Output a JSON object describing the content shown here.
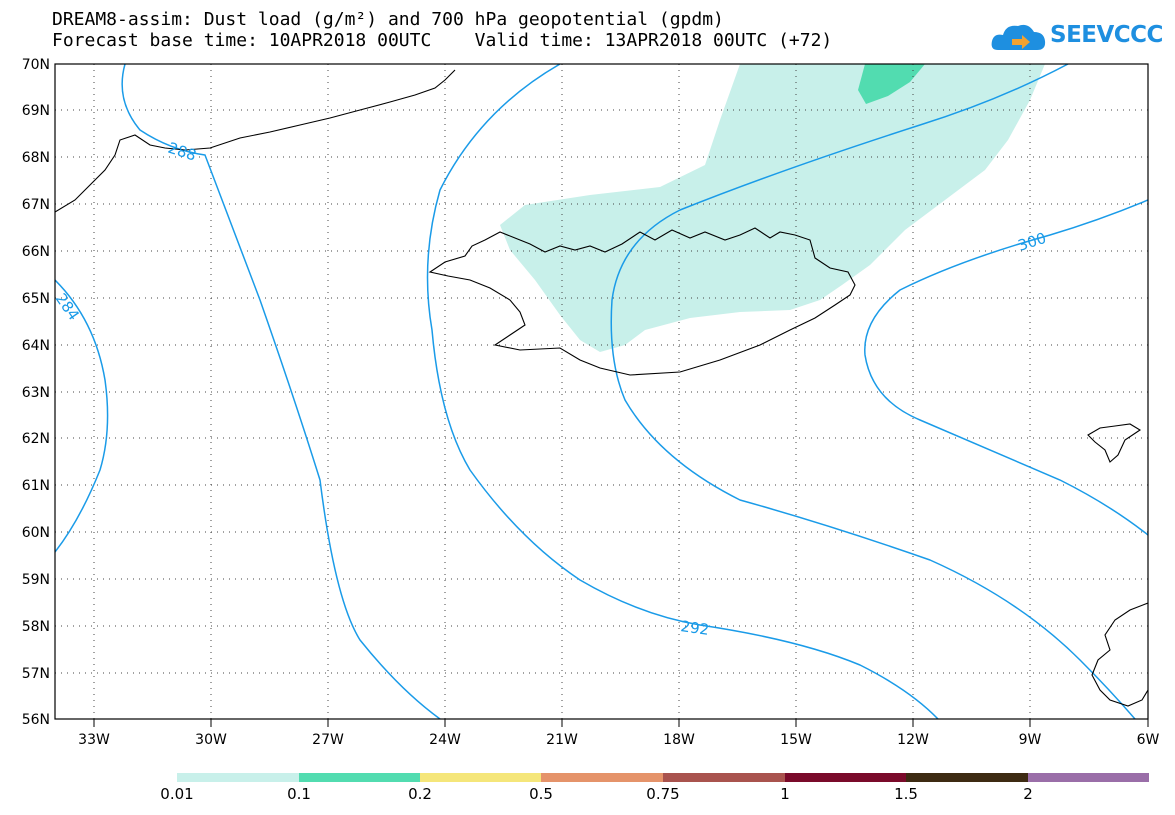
{
  "header": {
    "title_line1": "DREAM8-assim: Dust load (g/m²) and 700 hPa geopotential (gpdm)",
    "title_line2": "Forecast base time: 10APR2018 00UTC    Valid time: 13APR2018 00UTC (+72)"
  },
  "logo": {
    "text": "SEEVCCC",
    "icon": "cloud-icon",
    "color": "#1e8fe0"
  },
  "map": {
    "lat_labels": [
      "70N",
      "69N",
      "68N",
      "67N",
      "66N",
      "65N",
      "64N",
      "63N",
      "62N",
      "61N",
      "60N",
      "59N",
      "58N",
      "57N",
      "56N"
    ],
    "lon_labels": [
      "33W",
      "30W",
      "27W",
      "24W",
      "21W",
      "18W",
      "15W",
      "12W",
      "9W",
      "6W"
    ],
    "contour_labels": [
      "288",
      "292",
      "300",
      "284"
    ],
    "contour_color": "#1a9be8",
    "coast_color": "#000000"
  },
  "colorbar": {
    "labels": [
      "0.01",
      "0.1",
      "0.2",
      "0.5",
      "0.75",
      "1",
      "1.5",
      "2"
    ],
    "colors": [
      "#c8f0ea",
      "#52dcb0",
      "#f5e67a",
      "#e5936a",
      "#a9534e",
      "#7a0a2a",
      "#3d2a12",
      "#9a6ea8"
    ]
  }
}
